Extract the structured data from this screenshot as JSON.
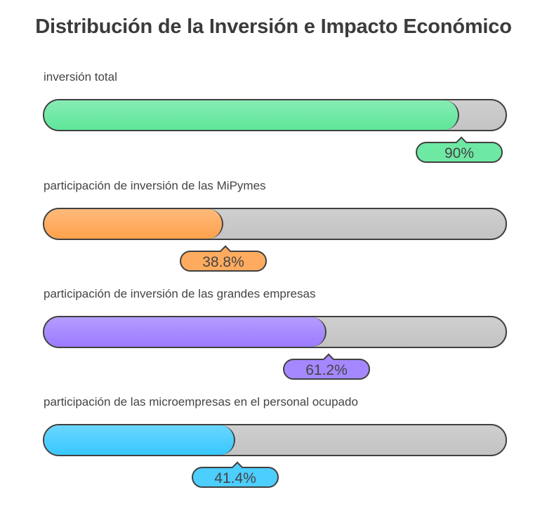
{
  "chart_data": {
    "type": "bar",
    "orientation": "horizontal",
    "title": "Distribución de la Inversión e Impacto Económico",
    "xlim": [
      0,
      100
    ],
    "unit": "%",
    "grid": false,
    "categories": [
      "inversión total",
      "participación de inversión de las MiPymes",
      "participación de inversión de las grandes empresas",
      "participación de las microempresas en el personal ocupado"
    ],
    "values": [
      90,
      38.8,
      61.2,
      41.4
    ],
    "value_labels": [
      "90%",
      "38.8%",
      "61.2%",
      "41.4%"
    ],
    "colors": [
      "#5ee69a",
      "#ffa24d",
      "#9b7bff",
      "#38c8ff"
    ]
  }
}
